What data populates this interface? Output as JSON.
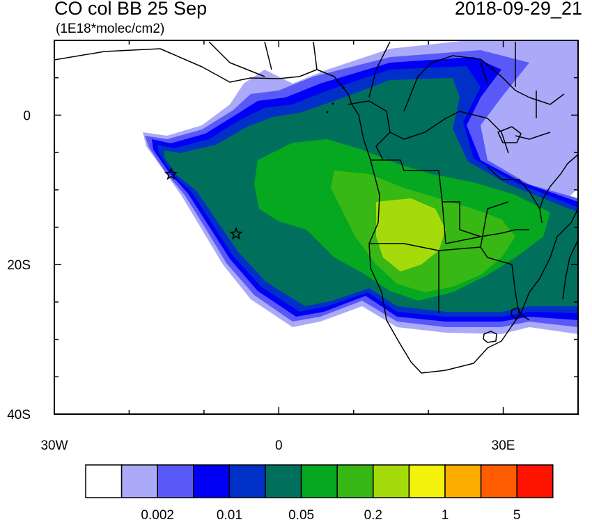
{
  "title": "CO col BB 25 Sep",
  "datetime": "2018-09-29_21",
  "units": "(1E18*molec/cm2)",
  "map": {
    "lon_range": [
      -30,
      40
    ],
    "lat_range": [
      -40,
      10
    ],
    "lon_ticks": [
      {
        "lon": -30,
        "label": "30W"
      },
      {
        "lon": 0,
        "label": "0"
      },
      {
        "lon": 30,
        "label": "30E"
      }
    ],
    "lat_ticks": [
      {
        "lat": 0,
        "label": "0"
      },
      {
        "lat": -20,
        "label": "20S"
      },
      {
        "lat": -40,
        "label": "40S"
      }
    ],
    "markers": [
      {
        "name": "star-marker-1",
        "lon": -14.4,
        "lat": -7.9
      },
      {
        "name": "star-marker-2",
        "lon": -5.7,
        "lat": -15.9
      }
    ]
  },
  "colorbar": {
    "colors": [
      "#ffffff",
      "#aaaaf8",
      "#5959f8",
      "#0000f5",
      "#0030c8",
      "#00705c",
      "#05a81e",
      "#38b814",
      "#a6db0b",
      "#f2f20c",
      "#fcad00",
      "#ff5d00",
      "#ff1400"
    ],
    "labels": [
      "0.002",
      "0.01",
      "0.05",
      "0.2",
      "1",
      "5"
    ]
  }
}
